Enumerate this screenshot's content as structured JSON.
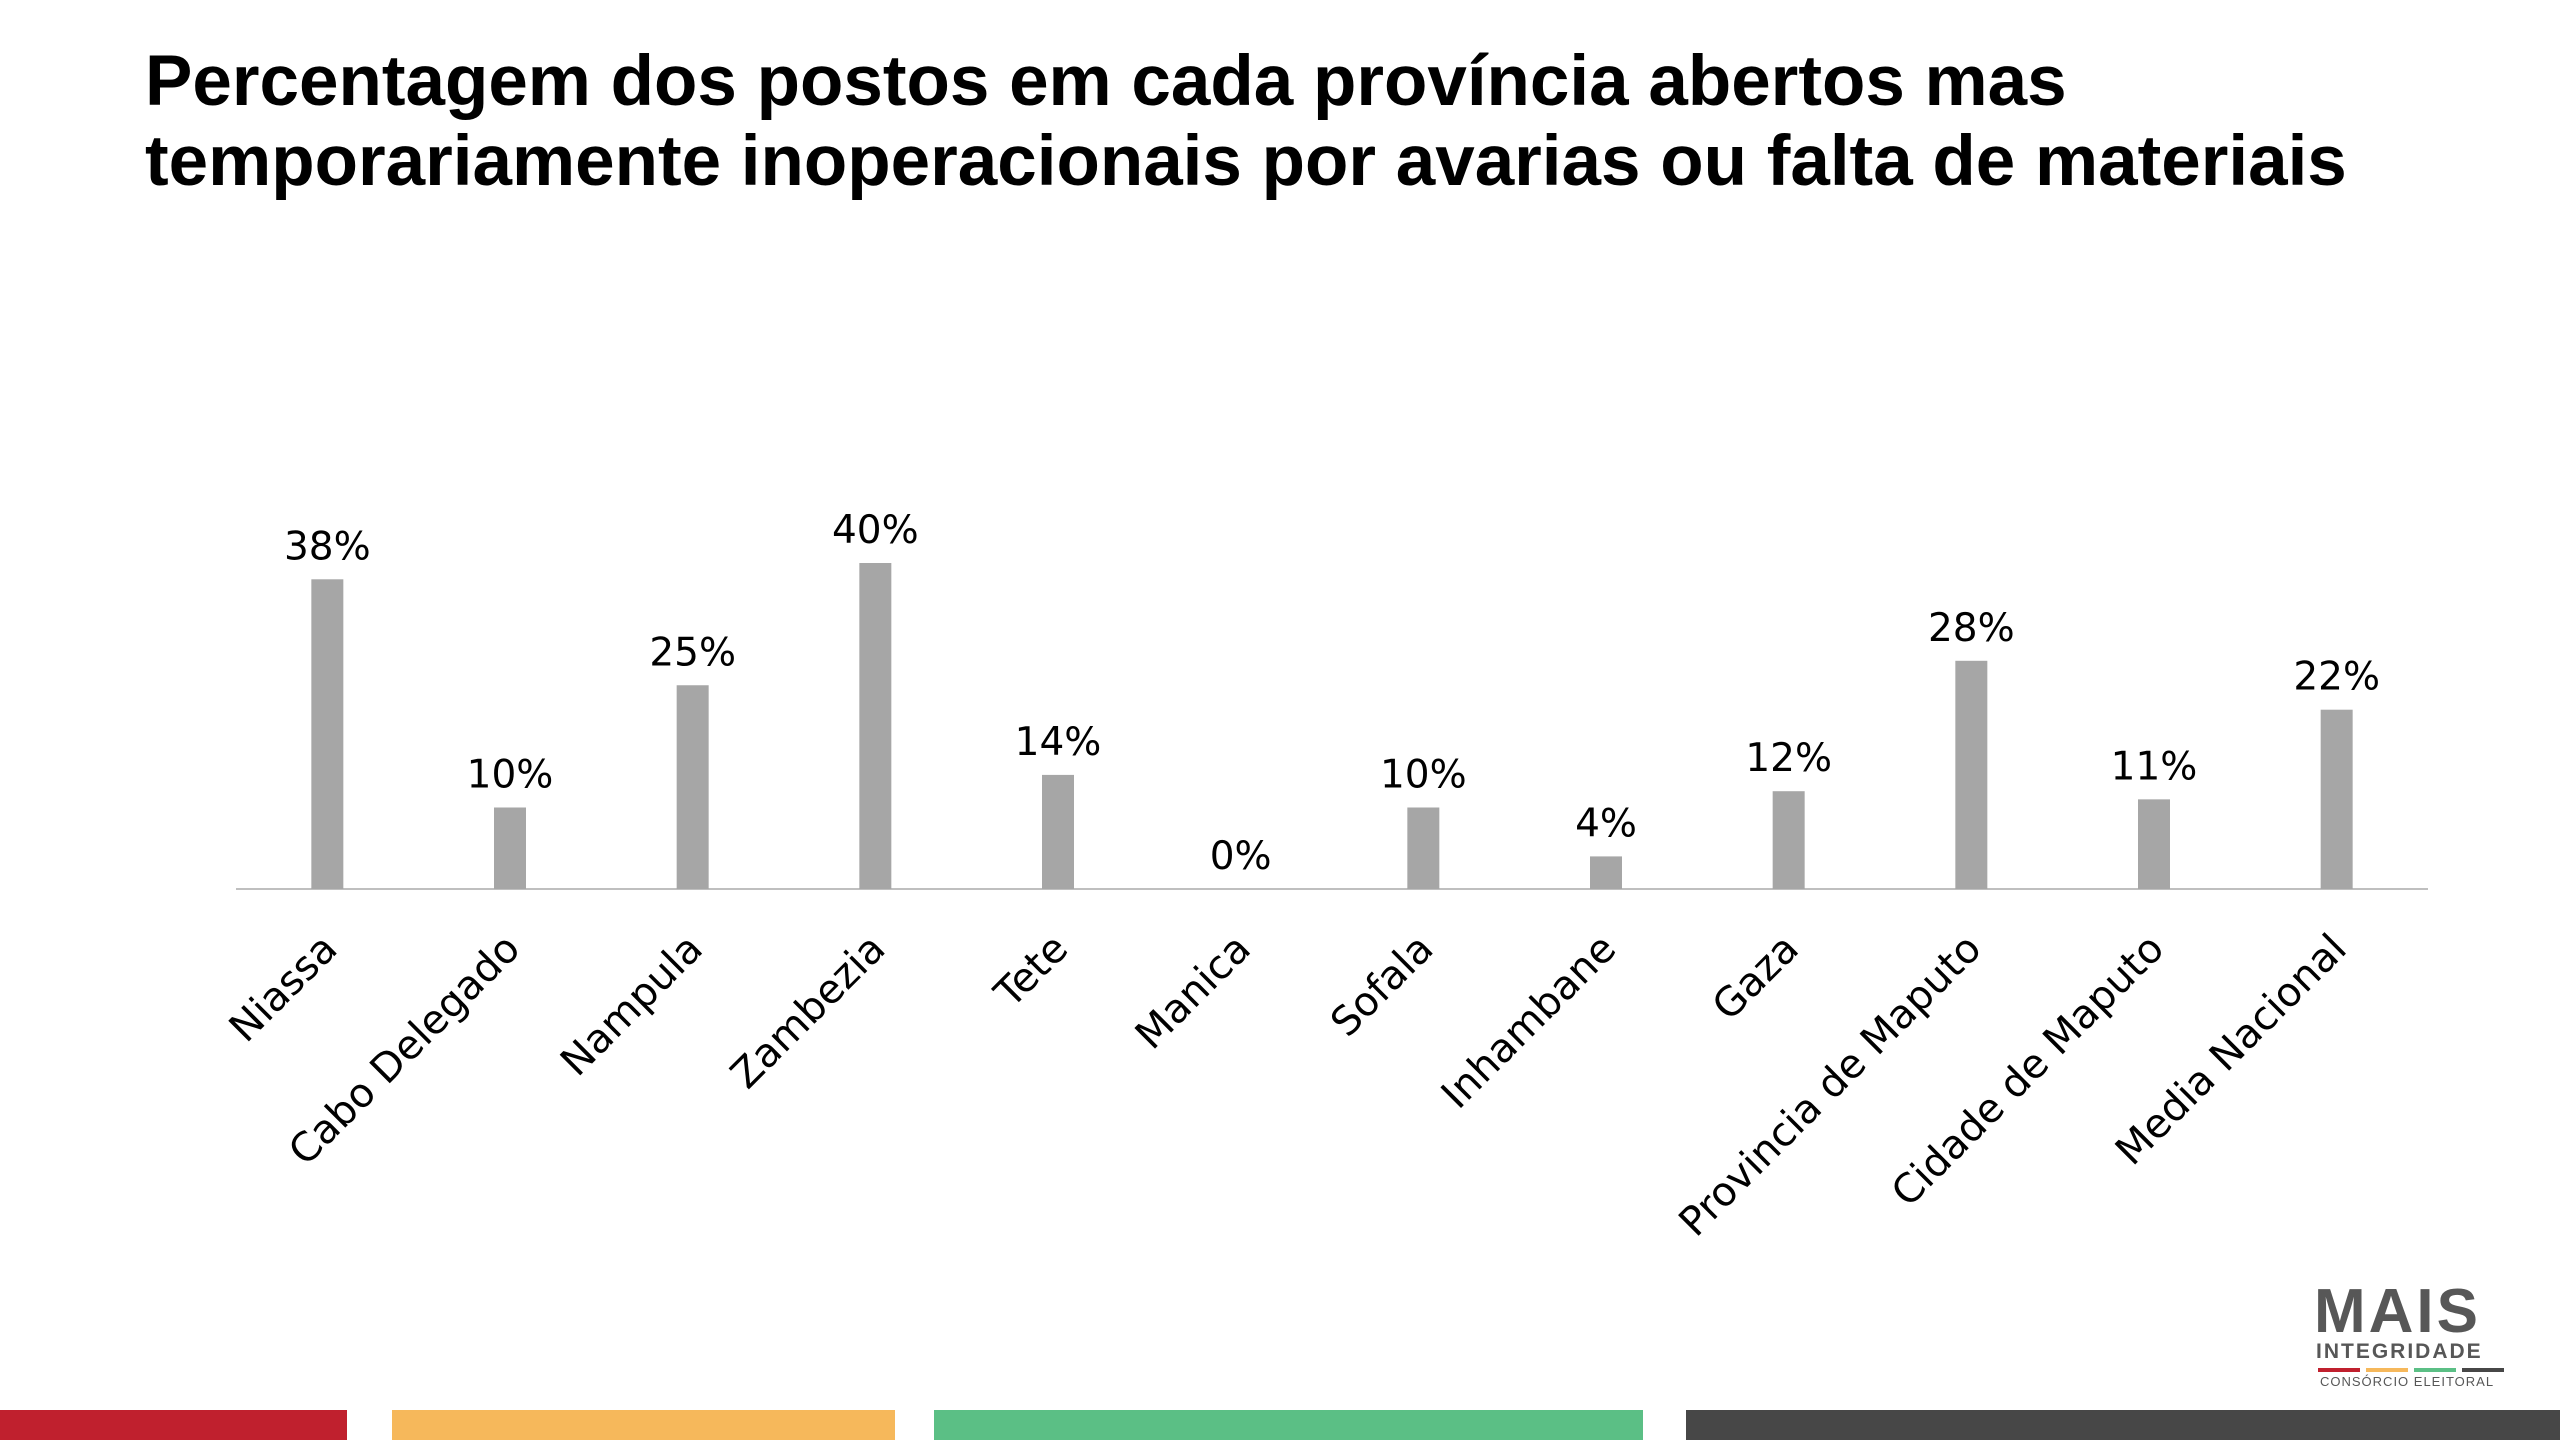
{
  "title_line1": "Percentagem dos postos em cada província abertos mas",
  "title_line2": "temporariamente inoperacionais por avarias ou falta de materiais",
  "chart_data": {
    "type": "bar",
    "title": "Percentagem dos postos em cada província abertos mas temporariamente inoperacionais por avarias ou falta de materiais",
    "categories": [
      "Niassa",
      "Cabo Delegado",
      "Nampula",
      "Zambezia",
      "Tete",
      "Manica",
      "Sofala",
      "Inhambane",
      "Gaza",
      "Provincia de Maputo",
      "Cidade de Maputo",
      "Media Nacional"
    ],
    "values": [
      38,
      10,
      25,
      40,
      14,
      0,
      10,
      4,
      12,
      28,
      11,
      22
    ],
    "data_labels": [
      "38%",
      "10%",
      "25%",
      "40%",
      "14%",
      "0%",
      "10%",
      "4%",
      "12%",
      "28%",
      "11%",
      "22%"
    ],
    "ylim": [
      0,
      40
    ],
    "grid": false,
    "legend": "none",
    "bar_color": "#a6a6a6",
    "axis_color": "#bfbfbf"
  },
  "logo": {
    "main": "MAIS",
    "sub": "INTEGRIDADE",
    "tagline": "CONSÓRCIO ELEITORAL"
  },
  "colors": {
    "footer_red": "#c0202e",
    "footer_yellow": "#f6b85b",
    "footer_green": "#5bbf85",
    "footer_dark": "#474747",
    "logo_gray": "#575757"
  }
}
